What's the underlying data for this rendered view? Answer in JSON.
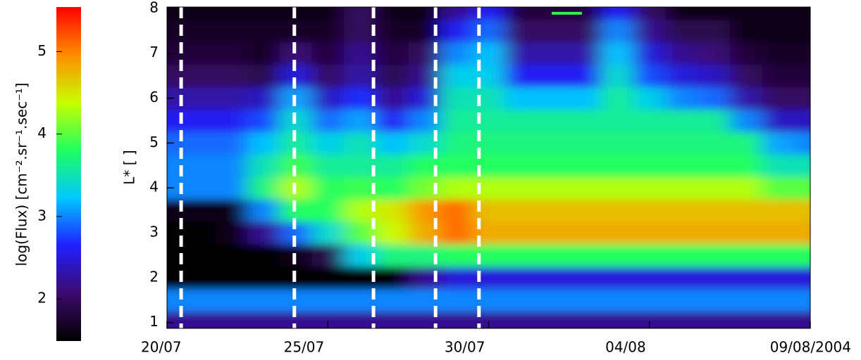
{
  "chart_data": {
    "type": "heatmap",
    "ylabel": "L* [ ]",
    "colorbar_label": "log(Flux) [cm⁻².sr⁻¹.sec⁻¹]",
    "x": [
      202,
      203,
      204,
      205,
      206,
      207,
      208,
      209,
      210,
      211,
      212,
      213,
      214,
      215,
      216,
      217,
      218,
      219,
      220,
      221,
      222
    ],
    "y": [
      1,
      1.5,
      2,
      2.5,
      3,
      3.5,
      4,
      4.5,
      5,
      5.5,
      6,
      6.5,
      7,
      7.5,
      8
    ],
    "z": [
      [
        2.2,
        2.2,
        2.2,
        2.2,
        2.2,
        2.2,
        2.2,
        2.2,
        2.2,
        2.2,
        2.2,
        2.2,
        2.2,
        2.2,
        2.2,
        2.2,
        2.2,
        2.2,
        2.2,
        2.2,
        2.2
      ],
      [
        3.0,
        3.0,
        3.0,
        3.0,
        3.0,
        3.0,
        3.0,
        3.0,
        3.0,
        3.0,
        3.0,
        3.0,
        3.0,
        3.0,
        3.0,
        3.0,
        3.0,
        3.0,
        3.0,
        3.0,
        3.0
      ],
      [
        1.5,
        1.5,
        1.5,
        1.5,
        1.5,
        1.5,
        1.5,
        1.5,
        2.2,
        2.5,
        2.5,
        2.5,
        2.5,
        2.5,
        2.5,
        2.5,
        2.5,
        2.5,
        2.5,
        2.5,
        2.5
      ],
      [
        1.5,
        1.5,
        1.5,
        1.5,
        1.6,
        1.9,
        3.3,
        3.7,
        3.7,
        3.8,
        3.8,
        3.8,
        3.8,
        3.8,
        3.8,
        3.8,
        3.8,
        3.8,
        3.8,
        3.8,
        3.8
      ],
      [
        1.5,
        1.5,
        1.6,
        2.2,
        2.9,
        3.4,
        4.0,
        4.4,
        4.8,
        5.1,
        4.8,
        4.8,
        4.8,
        4.8,
        4.8,
        4.8,
        4.8,
        4.8,
        4.8,
        4.8,
        4.8
      ],
      [
        1.6,
        1.6,
        1.6,
        3.0,
        3.8,
        3.8,
        4.3,
        4.5,
        4.9,
        5.1,
        4.7,
        4.7,
        4.7,
        4.7,
        4.7,
        4.7,
        4.7,
        4.7,
        4.7,
        4.7,
        4.7
      ],
      [
        3.0,
        3.0,
        3.0,
        3.7,
        4.3,
        3.8,
        3.9,
        3.8,
        4.1,
        4.3,
        4.3,
        4.3,
        4.3,
        4.3,
        4.3,
        4.3,
        4.3,
        4.3,
        4.3,
        4.0,
        4.0
      ],
      [
        3.0,
        3.0,
        3.0,
        3.5,
        3.9,
        3.6,
        3.6,
        3.6,
        3.8,
        3.8,
        3.8,
        3.8,
        3.8,
        3.8,
        3.8,
        3.8,
        3.8,
        3.8,
        3.8,
        3.5,
        3.5
      ],
      [
        2.9,
        2.9,
        2.9,
        3.2,
        3.6,
        3.3,
        3.5,
        3.2,
        3.4,
        3.7,
        3.7,
        3.7,
        3.7,
        3.7,
        3.7,
        3.7,
        3.7,
        3.7,
        3.7,
        3.1,
        3.0
      ],
      [
        2.6,
        2.6,
        2.6,
        2.8,
        3.4,
        2.9,
        3.1,
        2.6,
        3.0,
        3.6,
        3.6,
        3.6,
        3.6,
        3.6,
        3.6,
        3.6,
        3.6,
        3.6,
        3.0,
        2.4,
        2.4
      ],
      [
        2.3,
        2.3,
        2.3,
        2.4,
        3.1,
        2.4,
        2.7,
        2.2,
        2.5,
        3.5,
        3.5,
        3.2,
        3.2,
        3.2,
        3.6,
        3.3,
        3.0,
        2.9,
        2.3,
        2.0,
        2.0
      ],
      [
        2.0,
        2.0,
        2.0,
        1.9,
        2.5,
        2.0,
        2.3,
        1.9,
        2.2,
        3.3,
        3.3,
        2.6,
        2.6,
        2.6,
        3.4,
        2.8,
        2.5,
        2.4,
        2.0,
        1.8,
        1.8
      ],
      [
        1.8,
        1.8,
        1.8,
        1.7,
        2.1,
        1.8,
        2.2,
        1.8,
        2.0,
        3.0,
        3.2,
        2.3,
        2.3,
        2.3,
        3.2,
        2.5,
        2.2,
        2.1,
        1.8,
        1.7,
        1.7
      ],
      [
        1.7,
        1.7,
        1.7,
        1.7,
        1.7,
        1.7,
        2.0,
        1.7,
        1.7,
        2.6,
        2.9,
        2.0,
        2.0,
        2.0,
        3.0,
        2.2,
        1.9,
        1.9,
        1.6,
        1.6,
        1.6
      ],
      [
        1.6,
        1.6,
        1.6,
        1.6,
        1.6,
        1.6,
        2.0,
        1.6,
        1.6,
        2.2,
        2.6,
        1.8,
        1.8,
        1.8,
        2.6,
        2.0,
        1.6,
        1.6,
        1.6,
        1.6,
        1.6
      ]
    ],
    "xlim": [
      202,
      222
    ],
    "xticks": [
      {
        "value": 202,
        "label": "20/07"
      },
      {
        "value": 207,
        "label": "25/07"
      },
      {
        "value": 212,
        "label": "30/07"
      },
      {
        "value": 217,
        "label": "04/08"
      },
      {
        "value": 222,
        "label": "09/08/2004"
      }
    ],
    "ylim": [
      0.87,
      8.03
    ],
    "yticks": [
      1,
      2,
      3,
      4,
      5,
      6,
      7,
      8
    ],
    "zlim": [
      1.49,
      5.54
    ],
    "zticks": [
      2,
      3,
      4,
      5
    ],
    "colormap": [
      "#000000",
      "#3c0a6e",
      "#2020ff",
      "#00c8ff",
      "#20ff60",
      "#c8ff00",
      "#ff8c00",
      "#ff0000"
    ],
    "vlines": [
      202.44,
      205.96,
      208.42,
      210.35,
      211.7
    ],
    "vline_color": "#ffffff",
    "marker": {
      "x": [
        213.96,
        214.9
      ],
      "y": 7.89,
      "color": "#33ee55"
    }
  }
}
